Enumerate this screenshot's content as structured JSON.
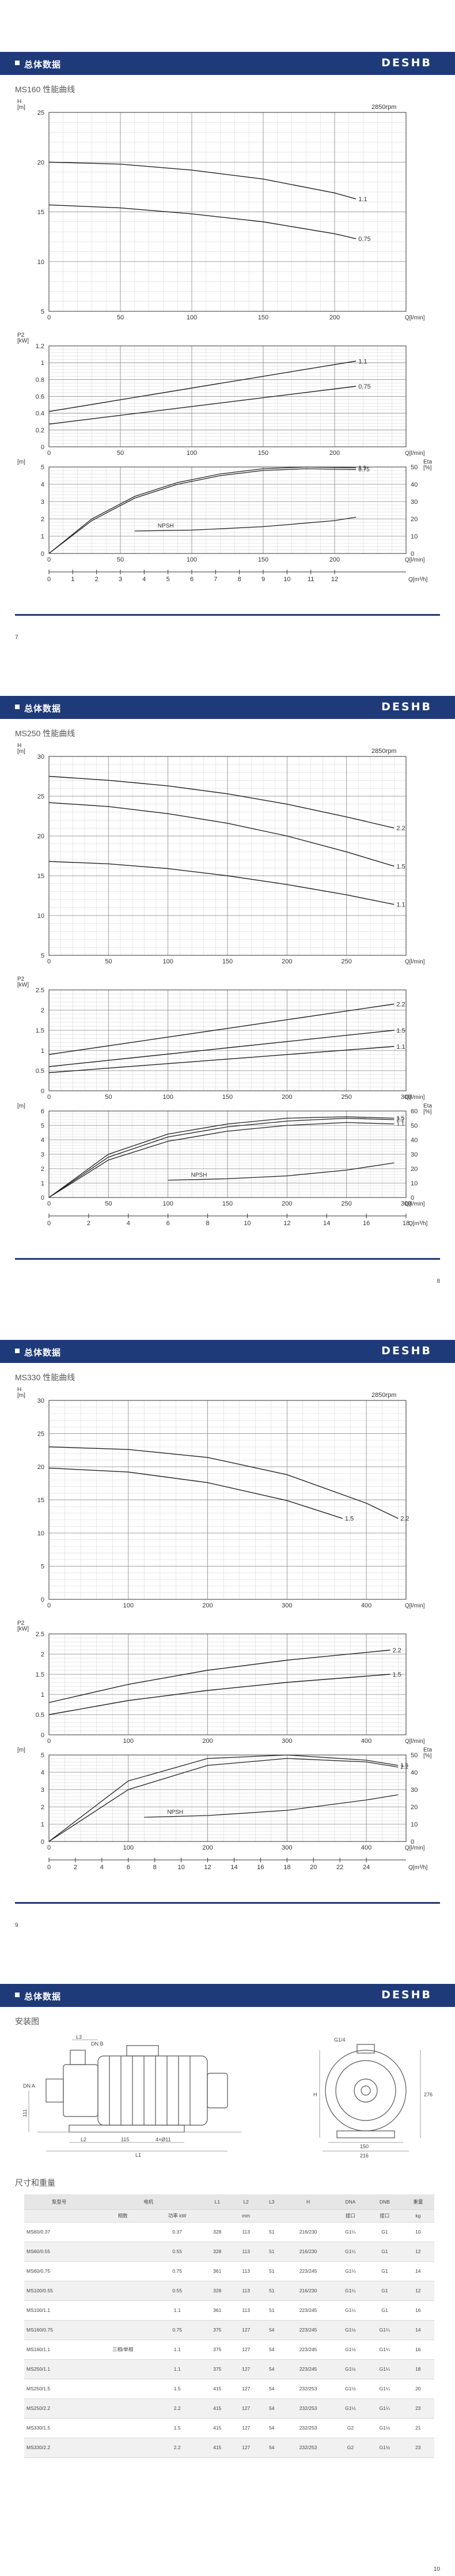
{
  "header": {
    "title": "总体数据",
    "brand": "DESHB"
  },
  "pages": [
    {
      "model_title": "MS160 性能曲线",
      "page_number": "7",
      "rpm": "2850rpm"
    },
    {
      "model_title": "MS250 性能曲线",
      "page_number": "8",
      "rpm": "2850rpm"
    },
    {
      "model_title": "MS330 性能曲线",
      "page_number": "9",
      "rpm": "2850rpm"
    }
  ],
  "labels": {
    "h_axis": "H\n[m]",
    "p2_axis": "P2\n[kW]",
    "npsh_axis": "NPSH\n[m]",
    "eta_axis": "Eta\n[%]",
    "q_lmin": "Q[l/min]",
    "q_m3h": "Q[m³/h]",
    "npsh": "NPSH"
  },
  "chart_data": [
    {
      "type": "line",
      "name": "MS160 H-Q",
      "xlim": [
        0,
        250
      ],
      "ylim": [
        5,
        25
      ],
      "xticks": [
        0,
        50,
        100,
        150,
        200
      ],
      "yticks": [
        5,
        10,
        15,
        20,
        25
      ],
      "series": [
        {
          "name": "1.1",
          "x": [
            0,
            50,
            100,
            150,
            200,
            215
          ],
          "y": [
            20.0,
            19.8,
            19.2,
            18.3,
            16.9,
            16.3
          ]
        },
        {
          "name": "0.75",
          "x": [
            0,
            50,
            100,
            150,
            200,
            215
          ],
          "y": [
            15.7,
            15.4,
            14.8,
            14.0,
            12.8,
            12.3
          ]
        }
      ]
    },
    {
      "type": "line",
      "name": "MS160 P2-Q",
      "xlim": [
        0,
        250
      ],
      "ylim": [
        0,
        1.2
      ],
      "xticks": [
        0,
        50,
        100,
        150,
        200
      ],
      "yticks": [
        0,
        0.2,
        0.4,
        0.6,
        0.8,
        1.0,
        1.2
      ],
      "series": [
        {
          "name": "1.1",
          "x": [
            0,
            215
          ],
          "y": [
            0.42,
            1.02
          ]
        },
        {
          "name": "0.75",
          "x": [
            0,
            215
          ],
          "y": [
            0.27,
            0.72
          ]
        }
      ]
    },
    {
      "type": "line",
      "name": "MS160 NPSH/Eta-Q",
      "xlim": [
        0,
        250
      ],
      "ylim": [
        0,
        5
      ],
      "y2lim": [
        0,
        50
      ],
      "xticks": [
        0,
        50,
        100,
        150,
        200
      ],
      "yticks": [
        0,
        1,
        2,
        3,
        4,
        5
      ],
      "y2ticks": [
        0,
        10,
        20,
        30,
        40,
        50
      ],
      "x2ticks": [
        0,
        1,
        2,
        3,
        4,
        5,
        6,
        7,
        8,
        9,
        10,
        11,
        12
      ],
      "series": [
        {
          "name": "1.1",
          "x": [
            0,
            30,
            60,
            90,
            120,
            150,
            180,
            215
          ],
          "y2": [
            0,
            20,
            33,
            41,
            46,
            49,
            50,
            49.5
          ]
        },
        {
          "name": "0.75",
          "x": [
            0,
            30,
            60,
            90,
            120,
            150,
            180,
            215
          ],
          "y2": [
            0,
            19,
            32,
            40,
            45,
            48,
            49,
            48.5
          ]
        },
        {
          "name": "NPSH",
          "x": [
            60,
            100,
            150,
            200,
            215
          ],
          "y": [
            1.3,
            1.35,
            1.55,
            1.9,
            2.1
          ]
        }
      ]
    },
    {
      "type": "line",
      "name": "MS250 H-Q",
      "xlim": [
        0,
        300
      ],
      "ylim": [
        5,
        30
      ],
      "xticks": [
        0,
        50,
        100,
        150,
        200,
        250
      ],
      "yticks": [
        5,
        10,
        15,
        20,
        25,
        30
      ],
      "series": [
        {
          "name": "2.2",
          "x": [
            0,
            50,
            100,
            150,
            200,
            250,
            290
          ],
          "y": [
            27.5,
            27.0,
            26.3,
            25.3,
            24.0,
            22.4,
            21.0
          ]
        },
        {
          "name": "1.5",
          "x": [
            0,
            50,
            100,
            150,
            200,
            250,
            290
          ],
          "y": [
            24.2,
            23.7,
            22.8,
            21.6,
            20.0,
            18.0,
            16.2
          ]
        },
        {
          "name": "1.1",
          "x": [
            0,
            50,
            100,
            150,
            200,
            250,
            290
          ],
          "y": [
            16.8,
            16.5,
            15.9,
            15.0,
            13.9,
            12.6,
            11.4
          ]
        }
      ]
    },
    {
      "type": "line",
      "name": "MS250 P2-Q",
      "xlim": [
        0,
        300
      ],
      "ylim": [
        0,
        2.5
      ],
      "xticks": [
        0,
        50,
        100,
        150,
        200,
        250,
        300
      ],
      "yticks": [
        0,
        0.5,
        1.0,
        1.5,
        2.0,
        2.5
      ],
      "series": [
        {
          "name": "2.2",
          "x": [
            0,
            290
          ],
          "y": [
            0.9,
            2.15
          ]
        },
        {
          "name": "1.5",
          "x": [
            0,
            290
          ],
          "y": [
            0.6,
            1.5
          ]
        },
        {
          "name": "1.1",
          "x": [
            0,
            290
          ],
          "y": [
            0.45,
            1.1
          ]
        }
      ]
    },
    {
      "type": "line",
      "name": "MS250 NPSH/Eta-Q",
      "xlim": [
        0,
        300
      ],
      "ylim": [
        0,
        6
      ],
      "y2lim": [
        0,
        60
      ],
      "xticks": [
        0,
        50,
        100,
        150,
        200,
        250,
        300
      ],
      "yticks": [
        0,
        1,
        2,
        3,
        4,
        5,
        6
      ],
      "y2ticks": [
        0,
        10,
        20,
        30,
        40,
        50,
        60
      ],
      "x2ticks": [
        0,
        2,
        4,
        6,
        8,
        10,
        12,
        14,
        16,
        18
      ],
      "series": [
        {
          "name": "1.5",
          "x": [
            0,
            50,
            100,
            150,
            200,
            250,
            290
          ],
          "y2": [
            0,
            30,
            44,
            51,
            55,
            56,
            55
          ]
        },
        {
          "name": "2.2",
          "x": [
            0,
            50,
            100,
            150,
            200,
            250,
            290
          ],
          "y2": [
            0,
            28,
            42,
            49,
            53,
            55,
            54
          ]
        },
        {
          "name": "1.1",
          "x": [
            0,
            50,
            100,
            150,
            200,
            250,
            290
          ],
          "y2": [
            0,
            26,
            39,
            46,
            50,
            52,
            51
          ]
        },
        {
          "name": "NPSH",
          "x": [
            100,
            150,
            200,
            250,
            290
          ],
          "y": [
            1.2,
            1.3,
            1.5,
            1.9,
            2.4
          ]
        }
      ]
    },
    {
      "type": "line",
      "name": "MS330 H-Q",
      "xlim": [
        0,
        450
      ],
      "ylim": [
        0,
        30
      ],
      "xticks": [
        0,
        100,
        200,
        300,
        400
      ],
      "yticks": [
        0,
        5,
        10,
        15,
        20,
        25,
        30
      ],
      "series": [
        {
          "name": "2.2",
          "x": [
            0,
            100,
            200,
            300,
            400,
            440
          ],
          "y": [
            23.0,
            22.6,
            21.4,
            18.8,
            14.5,
            12.2
          ]
        },
        {
          "name": "1.5",
          "x": [
            0,
            100,
            200,
            300,
            370
          ],
          "y": [
            19.8,
            19.2,
            17.6,
            14.9,
            12.2
          ]
        }
      ]
    },
    {
      "type": "line",
      "name": "MS330 P2-Q",
      "xlim": [
        0,
        450
      ],
      "ylim": [
        0,
        2.5
      ],
      "xticks": [
        0,
        100,
        200,
        300,
        400
      ],
      "yticks": [
        0,
        0.5,
        1.0,
        1.5,
        2.0,
        2.5
      ],
      "series": [
        {
          "name": "2.2",
          "x": [
            0,
            100,
            200,
            300,
            430
          ],
          "y": [
            0.8,
            1.25,
            1.6,
            1.85,
            2.1
          ]
        },
        {
          "name": "1.5",
          "x": [
            0,
            100,
            200,
            300,
            430
          ],
          "y": [
            0.5,
            0.85,
            1.1,
            1.3,
            1.5
          ]
        }
      ]
    },
    {
      "type": "line",
      "name": "MS330 NPSH/Eta-Q",
      "xlim": [
        0,
        450
      ],
      "ylim": [
        0,
        5
      ],
      "y2lim": [
        0,
        50
      ],
      "xticks": [
        0,
        100,
        200,
        300,
        400
      ],
      "yticks": [
        0,
        1,
        2,
        3,
        4,
        5
      ],
      "y2ticks": [
        0,
        10,
        20,
        30,
        40,
        50
      ],
      "x2ticks": [
        0,
        2,
        4,
        6,
        8,
        10,
        12,
        14,
        16,
        18,
        20,
        22,
        24
      ],
      "series": [
        {
          "name": "1.5",
          "x": [
            0,
            100,
            200,
            300,
            400,
            440
          ],
          "y2": [
            0,
            35,
            48,
            50,
            47,
            44
          ]
        },
        {
          "name": "2.2",
          "x": [
            0,
            100,
            200,
            300,
            400,
            440
          ],
          "y2": [
            0,
            30,
            44,
            48,
            46,
            43
          ]
        },
        {
          "name": "NPSH",
          "x": [
            120,
            200,
            300,
            400,
            440
          ],
          "y": [
            1.4,
            1.5,
            1.8,
            2.4,
            2.7
          ]
        }
      ]
    }
  ],
  "install": {
    "section_title": "安装图",
    "dims_front": [
      "L3",
      "DN B",
      "DN A",
      "L2",
      "115",
      "4×Ø11",
      "L1",
      "111"
    ],
    "dims_side": [
      "G1/4",
      "H",
      "150",
      "216",
      "276"
    ]
  },
  "dimensions_table": {
    "section_title": "尺寸和重量",
    "headers": [
      "泵型号",
      "电机",
      "",
      "L1",
      "L2",
      "L3",
      "H",
      "DNA",
      "DNB",
      "重量"
    ],
    "subheaders": [
      "",
      "相数",
      "功率\nkW",
      "",
      "mm",
      "",
      "",
      "接口",
      "接口",
      "kg"
    ],
    "phase_label": "三相/单相",
    "rows": [
      [
        "MS60/0.37",
        "0.37",
        "328",
        "113",
        "51",
        "216/230",
        "G1¼",
        "G1",
        "10"
      ],
      [
        "MS60/0.55",
        "0.55",
        "328",
        "113",
        "51",
        "216/230",
        "G1¼",
        "G1",
        "12"
      ],
      [
        "MS60/0.75",
        "0.75",
        "361",
        "113",
        "51",
        "223/245",
        "G1¼",
        "G1",
        "14"
      ],
      [
        "MS100/0.55",
        "0.55",
        "328",
        "113",
        "51",
        "216/230",
        "G1¼",
        "G1",
        "12"
      ],
      [
        "MS100/1.1",
        "1.1",
        "361",
        "113",
        "51",
        "223/245",
        "G1¼",
        "G1",
        "16"
      ],
      [
        "MS160/0.75",
        "0.75",
        "375",
        "127",
        "54",
        "223/245",
        "G1½",
        "G1¼",
        "14"
      ],
      [
        "MS160/1.1",
        "1.1",
        "375",
        "127",
        "54",
        "223/245",
        "G1½",
        "G1¼",
        "16"
      ],
      [
        "MS250/1.1",
        "1.1",
        "375",
        "127",
        "54",
        "223/245",
        "G1½",
        "G1¼",
        "18"
      ],
      [
        "MS250/1.5",
        "1.5",
        "415",
        "127",
        "54",
        "232/253",
        "G1½",
        "G1¼",
        "20"
      ],
      [
        "MS250/2.2",
        "2.2",
        "415",
        "127",
        "54",
        "232/253",
        "G1½",
        "G1¼",
        "23"
      ],
      [
        "MS330/1.5",
        "1.5",
        "415",
        "127",
        "54",
        "232/253",
        "G2",
        "G1½",
        "21"
      ],
      [
        "MS330/2.2",
        "2.2",
        "415",
        "127",
        "54",
        "232/253",
        "G2",
        "G1½",
        "23"
      ]
    ],
    "page_number": "10"
  }
}
